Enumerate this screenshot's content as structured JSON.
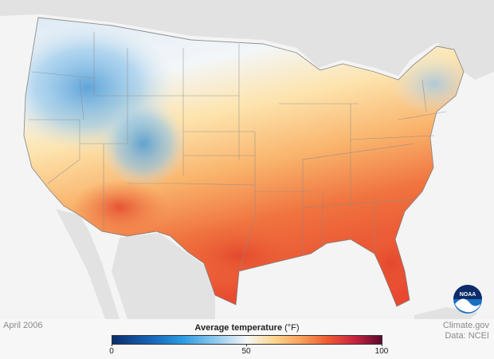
{
  "map": {
    "date": "April 2006",
    "legend": {
      "title": "Average temperature",
      "unit": "(°F)",
      "min_label": "0",
      "mid_label": "50",
      "max_label": "100",
      "range": [
        0,
        100
      ],
      "colors": [
        "#0b2e6b",
        "#1763b8",
        "#2a9be0",
        "#8cc8ee",
        "#f6f6f6",
        "#fbd68f",
        "#f9a15a",
        "#ee5a33",
        "#c9233f",
        "#5a0a2e"
      ]
    },
    "credit_line1": "Climate.gov",
    "credit_line2": "Data: NCEI",
    "logo_text": "NOAA"
  }
}
